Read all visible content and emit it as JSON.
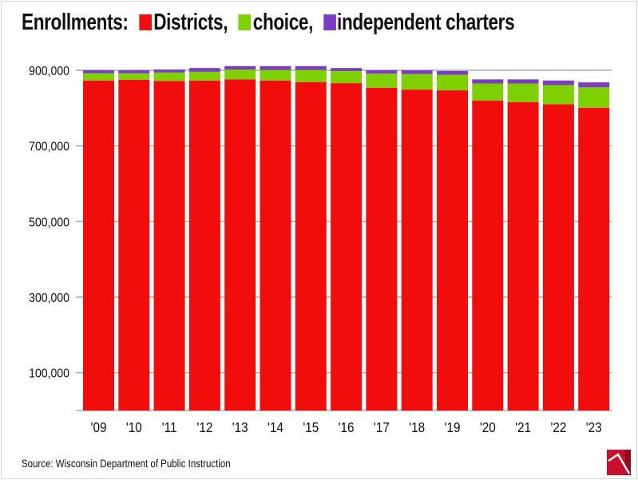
{
  "chart_data": {
    "type": "bar",
    "stacked": true,
    "title": "Enrollments:",
    "categories": [
      "'09",
      "'10",
      "'11",
      "'12",
      "'13",
      "'14",
      "'15",
      "'16",
      "'17",
      "'18",
      "'19",
      "'20",
      "'21",
      "'22",
      "'23"
    ],
    "series": [
      {
        "name": "Districts,",
        "color": "#f20d0d",
        "values": [
          873000,
          875000,
          872000,
          873000,
          876000,
          873000,
          869000,
          866000,
          854000,
          849000,
          847000,
          820000,
          816000,
          810000,
          801000
        ]
      },
      {
        "name": "choice,",
        "color": "#7fd000",
        "values": [
          19000,
          17000,
          22000,
          23000,
          26000,
          28000,
          32000,
          32000,
          37000,
          41000,
          41000,
          45000,
          49000,
          51000,
          54000
        ]
      },
      {
        "name": "independent charters",
        "color": "#7a3dc4",
        "values": [
          8000,
          8000,
          8000,
          10000,
          9000,
          10000,
          10000,
          8000,
          9000,
          10000,
          10000,
          11000,
          11000,
          12000,
          13000
        ]
      }
    ],
    "yticks": [
      100000,
      300000,
      500000,
      700000,
      900000
    ],
    "ytick_labels": [
      "100,000",
      "300,000",
      "500,000",
      "700,000",
      "900,000"
    ],
    "ylim": [
      0,
      960000
    ],
    "grid": true,
    "legend_placement": "top (inline with title)",
    "source": "Source: Wisconsin Department of Public Instruction"
  }
}
